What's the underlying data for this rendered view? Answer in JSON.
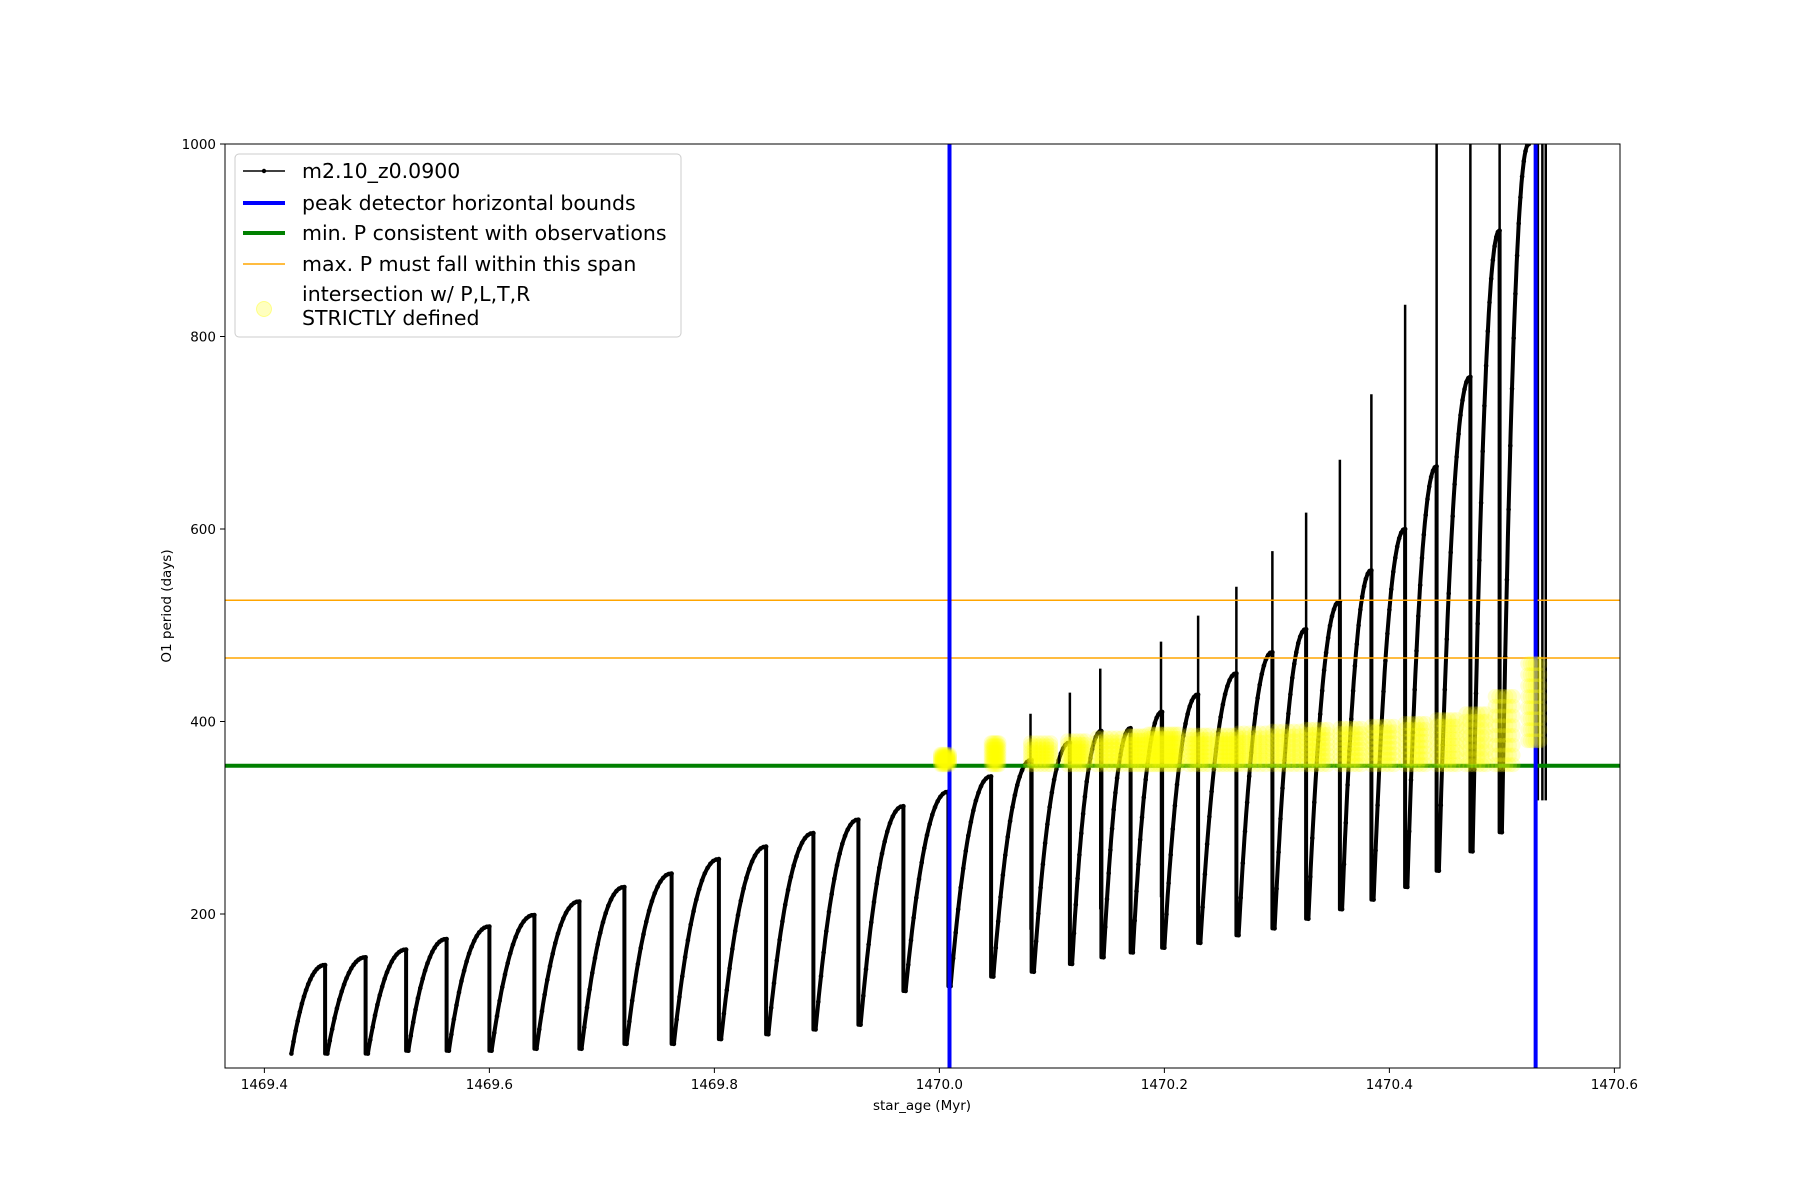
{
  "chart_data": {
    "type": "line",
    "title": "",
    "xlabel": "star_age (Myr)",
    "ylabel": "O1 period (days)",
    "xlim": [
      1469.365,
      1470.605
    ],
    "ylim": [
      40,
      1000
    ],
    "xticks": [
      1469.4,
      1469.6,
      1469.8,
      1470.0,
      1470.2,
      1470.4,
      1470.6
    ],
    "xtick_labels": [
      "1469.4",
      "1469.6",
      "1469.8",
      "1470.0",
      "1470.2",
      "1470.4",
      "1470.6"
    ],
    "yticks": [
      200,
      400,
      600,
      800,
      1000
    ],
    "ytick_labels": [
      "200",
      "400",
      "600",
      "800",
      "1000"
    ],
    "grid": false,
    "legend_position": "top-left",
    "colors": {
      "series": "#000000",
      "bounds": "#0000ff",
      "min_p": "#008000",
      "max_p": "#ffa500",
      "intersection": "#ffff00"
    },
    "series": [
      {
        "name": "m2.10_z0.0900",
        "style": "black line with point markers",
        "cycles": [
          {
            "start": 1469.424,
            "end": 1469.454,
            "min": 55,
            "max": 147
          },
          {
            "start": 1469.456,
            "end": 1469.49,
            "min": 55,
            "max": 155
          },
          {
            "start": 1469.492,
            "end": 1469.526,
            "min": 55,
            "max": 163
          },
          {
            "start": 1469.528,
            "end": 1469.562,
            "min": 58,
            "max": 174
          },
          {
            "start": 1469.564,
            "end": 1469.6,
            "min": 58,
            "max": 187
          },
          {
            "start": 1469.602,
            "end": 1469.64,
            "min": 58,
            "max": 199
          },
          {
            "start": 1469.642,
            "end": 1469.68,
            "min": 60,
            "max": 213
          },
          {
            "start": 1469.682,
            "end": 1469.72,
            "min": 60,
            "max": 228
          },
          {
            "start": 1469.722,
            "end": 1469.762,
            "min": 65,
            "max": 242
          },
          {
            "start": 1469.764,
            "end": 1469.804,
            "min": 65,
            "max": 257
          },
          {
            "start": 1469.806,
            "end": 1469.846,
            "min": 70,
            "max": 270
          },
          {
            "start": 1469.848,
            "end": 1469.888,
            "min": 75,
            "max": 284
          },
          {
            "start": 1469.89,
            "end": 1469.928,
            "min": 80,
            "max": 298
          },
          {
            "start": 1469.93,
            "end": 1469.968,
            "min": 85,
            "max": 312
          },
          {
            "start": 1469.97,
            "end": 1470.008,
            "min": 120,
            "max": 327
          },
          {
            "start": 1470.01,
            "end": 1470.046,
            "min": 125,
            "max": 343
          },
          {
            "start": 1470.048,
            "end": 1470.082,
            "min": 135,
            "max": 360
          },
          {
            "start": 1470.084,
            "end": 1470.116,
            "min": 140,
            "max": 378
          },
          {
            "start": 1470.118,
            "end": 1470.144,
            "min": 148,
            "max": 390
          },
          {
            "start": 1470.146,
            "end": 1470.17,
            "min": 155,
            "max": 393
          },
          {
            "start": 1470.172,
            "end": 1470.198,
            "min": 160,
            "max": 410
          },
          {
            "start": 1470.2,
            "end": 1470.23,
            "min": 165,
            "max": 428
          },
          {
            "start": 1470.232,
            "end": 1470.264,
            "min": 170,
            "max": 450
          },
          {
            "start": 1470.266,
            "end": 1470.296,
            "min": 178,
            "max": 472
          },
          {
            "start": 1470.298,
            "end": 1470.326,
            "min": 185,
            "max": 496
          },
          {
            "start": 1470.328,
            "end": 1470.356,
            "min": 195,
            "max": 525
          },
          {
            "start": 1470.358,
            "end": 1470.384,
            "min": 205,
            "max": 557
          },
          {
            "start": 1470.386,
            "end": 1470.414,
            "min": 215,
            "max": 600
          },
          {
            "start": 1470.416,
            "end": 1470.442,
            "min": 228,
            "max": 665
          },
          {
            "start": 1470.444,
            "end": 1470.472,
            "min": 245,
            "max": 758
          },
          {
            "start": 1470.474,
            "end": 1470.498,
            "min": 265,
            "max": 910
          },
          {
            "start": 1470.5,
            "end": 1470.524,
            "min": 285,
            "max": 1000
          }
        ],
        "spikes": [
          {
            "x": 1470.081,
            "y": 408
          },
          {
            "x": 1470.116,
            "y": 430
          },
          {
            "x": 1470.143,
            "y": 455
          },
          {
            "x": 1470.197,
            "y": 483
          },
          {
            "x": 1470.23,
            "y": 510
          },
          {
            "x": 1470.264,
            "y": 540
          },
          {
            "x": 1470.296,
            "y": 577
          },
          {
            "x": 1470.326,
            "y": 617
          },
          {
            "x": 1470.356,
            "y": 672
          },
          {
            "x": 1470.384,
            "y": 740
          },
          {
            "x": 1470.414,
            "y": 833
          },
          {
            "x": 1470.442,
            "y": 1000
          },
          {
            "x": 1470.472,
            "y": 1000
          },
          {
            "x": 1470.498,
            "y": 1000
          }
        ],
        "final_burst": {
          "x": 1470.532,
          "ymin": 318,
          "ymax": 1000
        }
      },
      {
        "name": "peak detector horizontal bounds",
        "type": "vline",
        "x": [
          1470.009,
          1470.53
        ]
      },
      {
        "name": "min. P consistent with observations",
        "type": "hline",
        "y": 354
      },
      {
        "name": "max. P must fall within this span",
        "type": "hline",
        "y": [
          466,
          526
        ]
      },
      {
        "name": "intersection w/ P,L,T,R\nSTRICTLY defined",
        "type": "scatter",
        "clusters": [
          {
            "x0": 1470.001,
            "x1": 1470.009,
            "ymin": 355,
            "ymax": 366
          },
          {
            "x0": 1470.046,
            "x1": 1470.053,
            "ymin": 355,
            "ymax": 378
          },
          {
            "x0": 1470.081,
            "x1": 1470.099,
            "ymin": 355,
            "ymax": 378
          },
          {
            "x0": 1470.114,
            "x1": 1470.13,
            "ymin": 355,
            "ymax": 380
          },
          {
            "x0": 1470.14,
            "x1": 1470.162,
            "ymin": 355,
            "ymax": 383
          },
          {
            "x0": 1470.168,
            "x1": 1470.182,
            "ymin": 355,
            "ymax": 385
          },
          {
            "x0": 1470.186,
            "x1": 1470.198,
            "ymin": 355,
            "ymax": 387
          },
          {
            "x0": 1470.201,
            "x1": 1470.213,
            "ymin": 355,
            "ymax": 387
          },
          {
            "x0": 1470.222,
            "x1": 1470.24,
            "ymin": 355,
            "ymax": 386
          },
          {
            "x0": 1470.247,
            "x1": 1470.264,
            "ymin": 355,
            "ymax": 386
          },
          {
            "x0": 1470.266,
            "x1": 1470.29,
            "ymin": 355,
            "ymax": 388
          },
          {
            "x0": 1470.296,
            "x1": 1470.32,
            "ymin": 355,
            "ymax": 390
          },
          {
            "x0": 1470.326,
            "x1": 1470.345,
            "ymin": 355,
            "ymax": 392
          },
          {
            "x0": 1470.356,
            "x1": 1470.375,
            "ymin": 355,
            "ymax": 393
          },
          {
            "x0": 1470.384,
            "x1": 1470.404,
            "ymin": 355,
            "ymax": 395
          },
          {
            "x0": 1470.414,
            "x1": 1470.432,
            "ymin": 355,
            "ymax": 398
          },
          {
            "x0": 1470.442,
            "x1": 1470.46,
            "ymin": 355,
            "ymax": 402
          },
          {
            "x0": 1470.468,
            "x1": 1470.486,
            "ymin": 355,
            "ymax": 408
          },
          {
            "x0": 1470.494,
            "x1": 1470.51,
            "ymin": 355,
            "ymax": 426
          },
          {
            "x0": 1470.523,
            "x1": 1470.534,
            "ymin": 380,
            "ymax": 460
          }
        ]
      }
    ]
  }
}
